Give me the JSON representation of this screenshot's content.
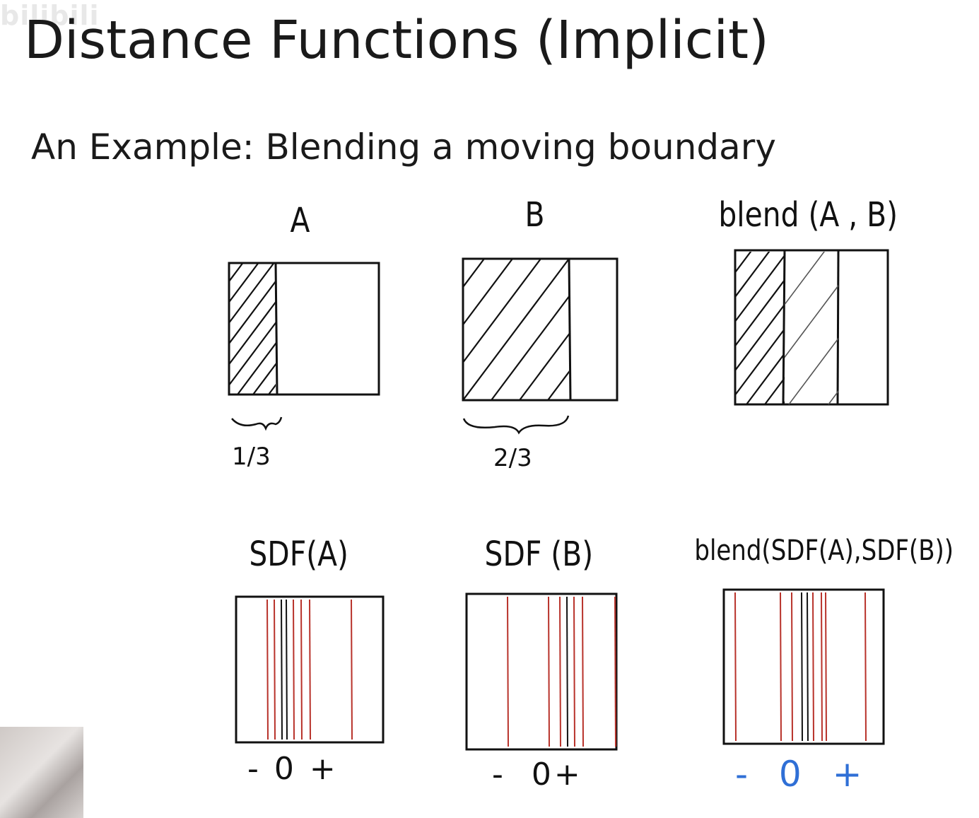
{
  "title": "Distance Functions (Implicit)",
  "subtitle": "An Example: Blending a moving boundary",
  "watermark": "bilibili",
  "panels_top": [
    {
      "label": "A",
      "fraction_label": "1/3"
    },
    {
      "label": "B",
      "fraction_label": "2/3"
    },
    {
      "label": "blend (A , B)",
      "fraction_label": ""
    }
  ],
  "panels_bottom": [
    {
      "label": "SDF(A)",
      "axis": "- 0 +"
    },
    {
      "label": "SDF (B)",
      "axis": "-  0+"
    },
    {
      "label": "blend(SDF(A),SDF(B))",
      "axis": "- 0 +"
    }
  ],
  "colors": {
    "ink": "#111111",
    "contour": "#b8322a",
    "blend_axis": "#2f6fd6"
  }
}
